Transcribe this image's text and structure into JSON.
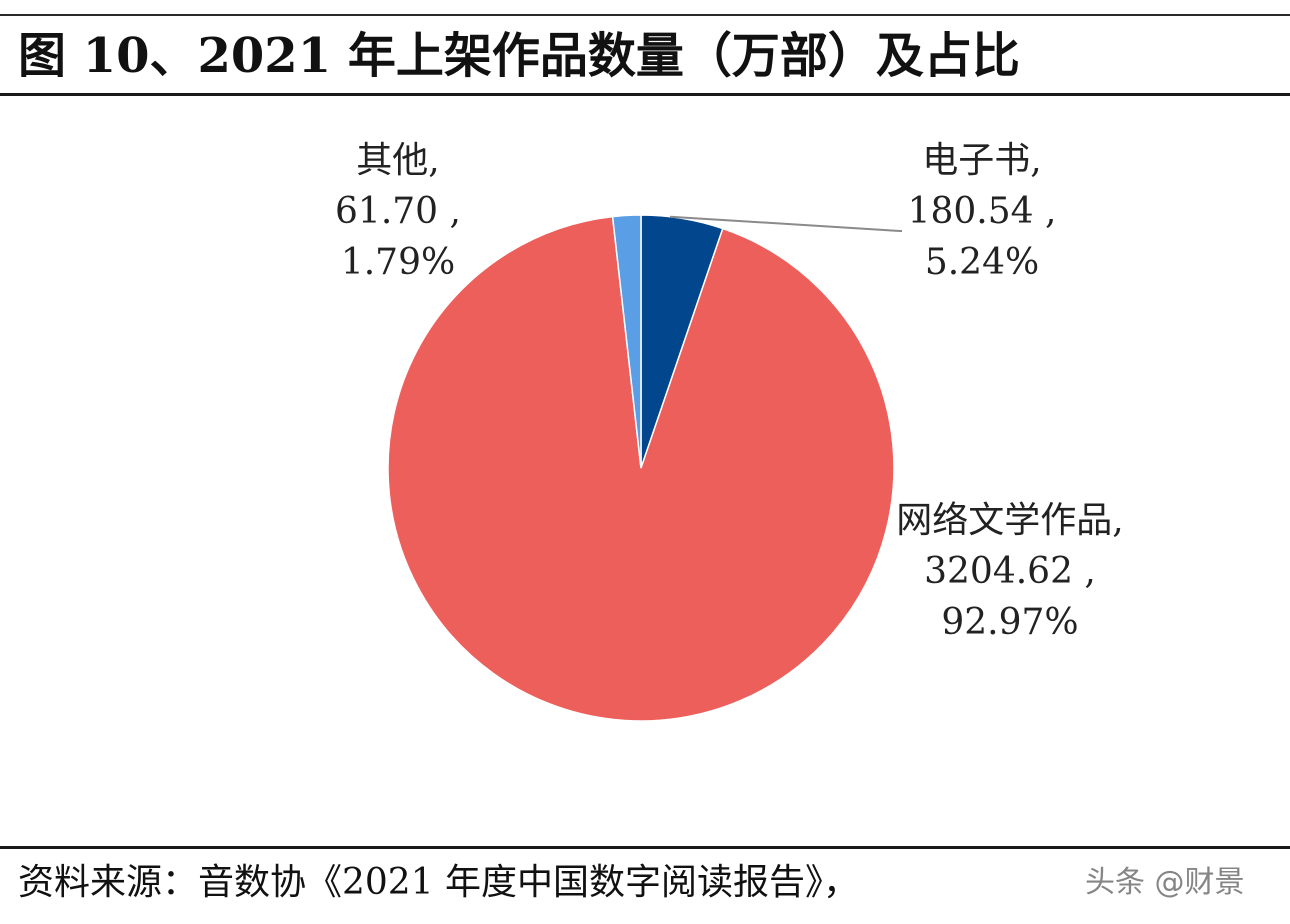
{
  "header": {
    "title": "图 10、2021 年上架作品数量（万部）及占比"
  },
  "footer": {
    "source": "资料来源：音数协《2021 年度中国数字阅读报告》，",
    "watermark": "头条 @财景"
  },
  "chart_data": {
    "type": "pie",
    "title": "图 10、2021 年上架作品数量（万部）及占比",
    "unit": "万部",
    "slices": [
      {
        "name": "电子书",
        "value": 180.54,
        "value_label": "180.54",
        "percent": 5.24,
        "percent_label": "5.24%",
        "color": "#02468e"
      },
      {
        "name": "网络文学作品",
        "value": 3204.62,
        "value_label": "3204.62",
        "percent": 92.97,
        "percent_label": "92.97%",
        "color": "#ec5f5b"
      },
      {
        "name": "其他",
        "value": 61.7,
        "value_label": "61.70",
        "percent": 1.79,
        "percent_label": "1.79%",
        "color": "#5a9ee6"
      }
    ],
    "start_angle": "12 o'clock",
    "direction": "clockwise",
    "labels": "outside, name / value / percent on three lines",
    "leader_line_color": "#8a8a8a",
    "legend": "none"
  }
}
